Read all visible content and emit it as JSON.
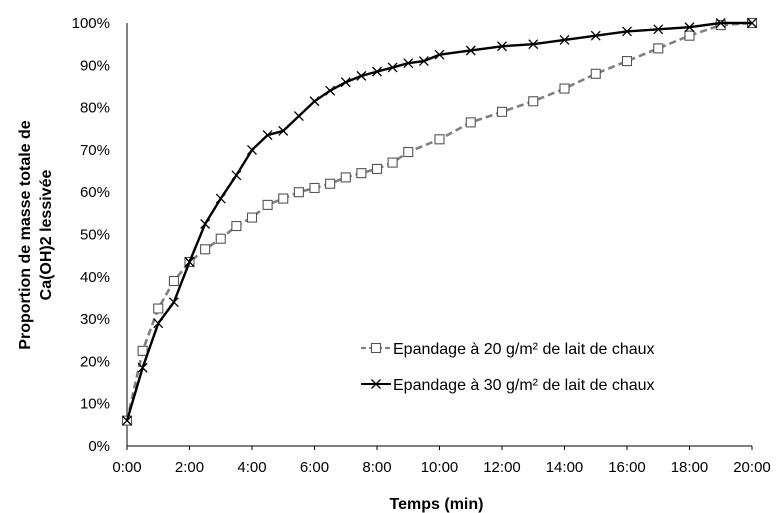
{
  "chart_data": {
    "type": "line",
    "title": "",
    "xlabel": "Temps (min)",
    "ylabel_lines": [
      "Proportion de masse totale de",
      "Ca(OH)2 lessivée"
    ],
    "xlim": [
      0,
      20
    ],
    "ylim": [
      0,
      100
    ],
    "x_tick_labels": [
      "0:00",
      "2:00",
      "4:00",
      "6:00",
      "8:00",
      "10:00",
      "12:00",
      "14:00",
      "16:00",
      "18:00",
      "20:00"
    ],
    "y_tick_labels": [
      "0%",
      "10%",
      "20%",
      "30%",
      "40%",
      "50%",
      "60%",
      "70%",
      "80%",
      "90%",
      "100%"
    ],
    "grid": false,
    "legend_position": "bottom-right",
    "series": [
      {
        "name": "Epandage à 20 g/m² de lait de chaux",
        "marker": "square",
        "line_style": "dashed",
        "color": "#7f7f7f",
        "x": [
          0,
          0.5,
          1,
          1.5,
          2,
          2.5,
          3,
          3.5,
          4,
          4.5,
          5,
          5.5,
          6,
          6.5,
          7,
          7.5,
          8,
          8.5,
          9,
          10,
          11,
          12,
          13,
          14,
          15,
          16,
          17,
          18,
          19,
          20
        ],
        "y": [
          6,
          22.5,
          32.5,
          39,
          43.5,
          46.5,
          49,
          52,
          54,
          57,
          58.5,
          60,
          61,
          62,
          63.5,
          64.5,
          65.5,
          67,
          69.5,
          72.5,
          76.5,
          79,
          81.5,
          84.5,
          88,
          91,
          94,
          97,
          99.5,
          100
        ]
      },
      {
        "name": "Epandage à 30 g/m² de lait de chaux",
        "marker": "x",
        "line_style": "solid",
        "color": "#000000",
        "x": [
          0,
          0.5,
          1,
          1.5,
          2,
          2.5,
          3,
          3.5,
          4,
          4.5,
          5,
          5.5,
          6,
          6.5,
          7,
          7.5,
          8,
          8.5,
          9,
          9.5,
          10,
          11,
          12,
          13,
          14,
          15,
          16,
          17,
          18,
          19,
          20
        ],
        "y": [
          6,
          18.5,
          29,
          34,
          43.5,
          52.5,
          58.5,
          64,
          70,
          73.5,
          74.5,
          78,
          81.5,
          84,
          86,
          87.5,
          88.5,
          89.5,
          90.5,
          91,
          92.5,
          93.5,
          94.5,
          95,
          96,
          97,
          98,
          98.5,
          99,
          100,
          100
        ]
      }
    ]
  }
}
